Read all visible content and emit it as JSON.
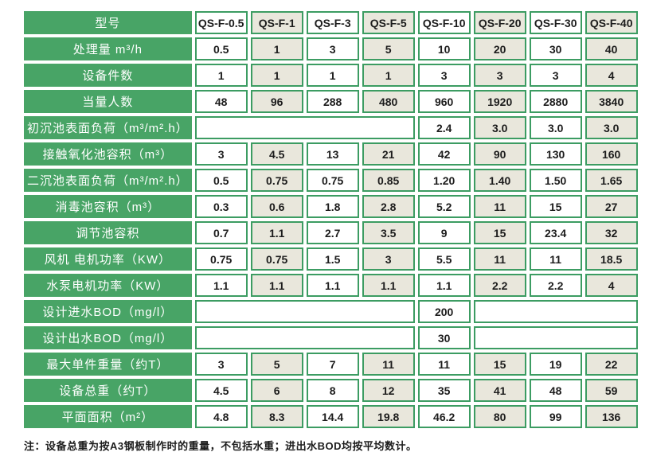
{
  "table": {
    "rows": [
      {
        "kind": "header",
        "label": "型号",
        "cells": [
          {
            "v": "QS-F-0.5"
          },
          {
            "v": "QS-F-1"
          },
          {
            "v": "QS-F-3"
          },
          {
            "v": "QS-F-5"
          },
          {
            "v": "QS-F-10"
          },
          {
            "v": "QS-F-20"
          },
          {
            "v": "QS-F-30"
          },
          {
            "v": "QS-F-40"
          }
        ]
      },
      {
        "label": "处理量 m³/h",
        "cells": [
          {
            "v": "0.5"
          },
          {
            "v": "1"
          },
          {
            "v": "3"
          },
          {
            "v": "5"
          },
          {
            "v": "10"
          },
          {
            "v": "20"
          },
          {
            "v": "30"
          },
          {
            "v": "40"
          }
        ]
      },
      {
        "label": "设备件数",
        "cells": [
          {
            "v": "1"
          },
          {
            "v": "1"
          },
          {
            "v": "1"
          },
          {
            "v": "1"
          },
          {
            "v": "3"
          },
          {
            "v": "3"
          },
          {
            "v": "3"
          },
          {
            "v": "4"
          }
        ]
      },
      {
        "label": "当量人数",
        "cells": [
          {
            "v": "48"
          },
          {
            "v": "96"
          },
          {
            "v": "288"
          },
          {
            "v": "480"
          },
          {
            "v": "960"
          },
          {
            "v": "1920"
          },
          {
            "v": "2880"
          },
          {
            "v": "3840"
          }
        ]
      },
      {
        "label": "初沉池表面负荷（m³/m².h）",
        "cells": [
          {
            "v": "",
            "span": 4
          },
          {
            "v": "2.4"
          },
          {
            "v": "3.0"
          },
          {
            "v": "3.0"
          },
          {
            "v": "3.0"
          }
        ]
      },
      {
        "label": "接触氧化池容积（m³）",
        "cells": [
          {
            "v": "3"
          },
          {
            "v": "4.5"
          },
          {
            "v": "13"
          },
          {
            "v": "21"
          },
          {
            "v": "42"
          },
          {
            "v": "90"
          },
          {
            "v": "130"
          },
          {
            "v": "160"
          }
        ]
      },
      {
        "label": "二沉池表面负荷（m³/m².h）",
        "cells": [
          {
            "v": "0.5"
          },
          {
            "v": "0.75"
          },
          {
            "v": "0.75"
          },
          {
            "v": "0.85"
          },
          {
            "v": "1.20"
          },
          {
            "v": "1.40"
          },
          {
            "v": "1.50"
          },
          {
            "v": "1.65"
          }
        ]
      },
      {
        "label": "消毒池容积（m³）",
        "cells": [
          {
            "v": "0.3"
          },
          {
            "v": "0.6"
          },
          {
            "v": "1.8"
          },
          {
            "v": "2.8"
          },
          {
            "v": "5.2"
          },
          {
            "v": "11"
          },
          {
            "v": "15"
          },
          {
            "v": "27"
          }
        ]
      },
      {
        "label": "调节池容积",
        "cells": [
          {
            "v": "0.7"
          },
          {
            "v": "1.1"
          },
          {
            "v": "2.7"
          },
          {
            "v": "3.5"
          },
          {
            "v": "9"
          },
          {
            "v": "15"
          },
          {
            "v": "23.4"
          },
          {
            "v": "32"
          }
        ]
      },
      {
        "label": "风机 电机功率（KW）",
        "cells": [
          {
            "v": "0.75"
          },
          {
            "v": "0.75"
          },
          {
            "v": "1.5"
          },
          {
            "v": "3"
          },
          {
            "v": "5.5"
          },
          {
            "v": "11"
          },
          {
            "v": "11"
          },
          {
            "v": "18.5"
          }
        ]
      },
      {
        "label": "水泵电机功率（KW）",
        "cells": [
          {
            "v": "1.1"
          },
          {
            "v": "1.1"
          },
          {
            "v": "1.1"
          },
          {
            "v": "1.1"
          },
          {
            "v": "1.1"
          },
          {
            "v": "2.2"
          },
          {
            "v": "2.2"
          },
          {
            "v": "4"
          }
        ]
      },
      {
        "label": "设计进水BOD（mg/l）",
        "cells": [
          {
            "v": "",
            "span": 4
          },
          {
            "v": "200"
          },
          {
            "v": "",
            "span": 3
          }
        ]
      },
      {
        "label": "设计出水BOD（mg/l）",
        "cells": [
          {
            "v": "",
            "span": 4
          },
          {
            "v": "30"
          },
          {
            "v": "",
            "span": 3
          }
        ]
      },
      {
        "label": "最大单件重量（约T）",
        "cells": [
          {
            "v": "3"
          },
          {
            "v": "5"
          },
          {
            "v": "7"
          },
          {
            "v": "11"
          },
          {
            "v": "11"
          },
          {
            "v": "15"
          },
          {
            "v": "19"
          },
          {
            "v": "22"
          }
        ]
      },
      {
        "label": "设备总重（约T）",
        "cells": [
          {
            "v": "4.5"
          },
          {
            "v": "6"
          },
          {
            "v": "8"
          },
          {
            "v": "12"
          },
          {
            "v": "35"
          },
          {
            "v": "41"
          },
          {
            "v": "48"
          },
          {
            "v": "59"
          }
        ]
      },
      {
        "label": "平面面积（m²）",
        "cells": [
          {
            "v": "4.8"
          },
          {
            "v": "8.3"
          },
          {
            "v": "14.4"
          },
          {
            "v": "19.8"
          },
          {
            "v": "46.2"
          },
          {
            "v": "80"
          },
          {
            "v": "99"
          },
          {
            "v": "136"
          }
        ]
      }
    ]
  },
  "footnote": "注：设备总重为按A3钢板制作时的重量，不包括水重；进出水BOD均按平均数计。",
  "colors": {
    "green": "#48a466",
    "border_green": "#3c9c62",
    "alt_cell": "#e9e7dc",
    "cell_white": "#ffffff"
  }
}
